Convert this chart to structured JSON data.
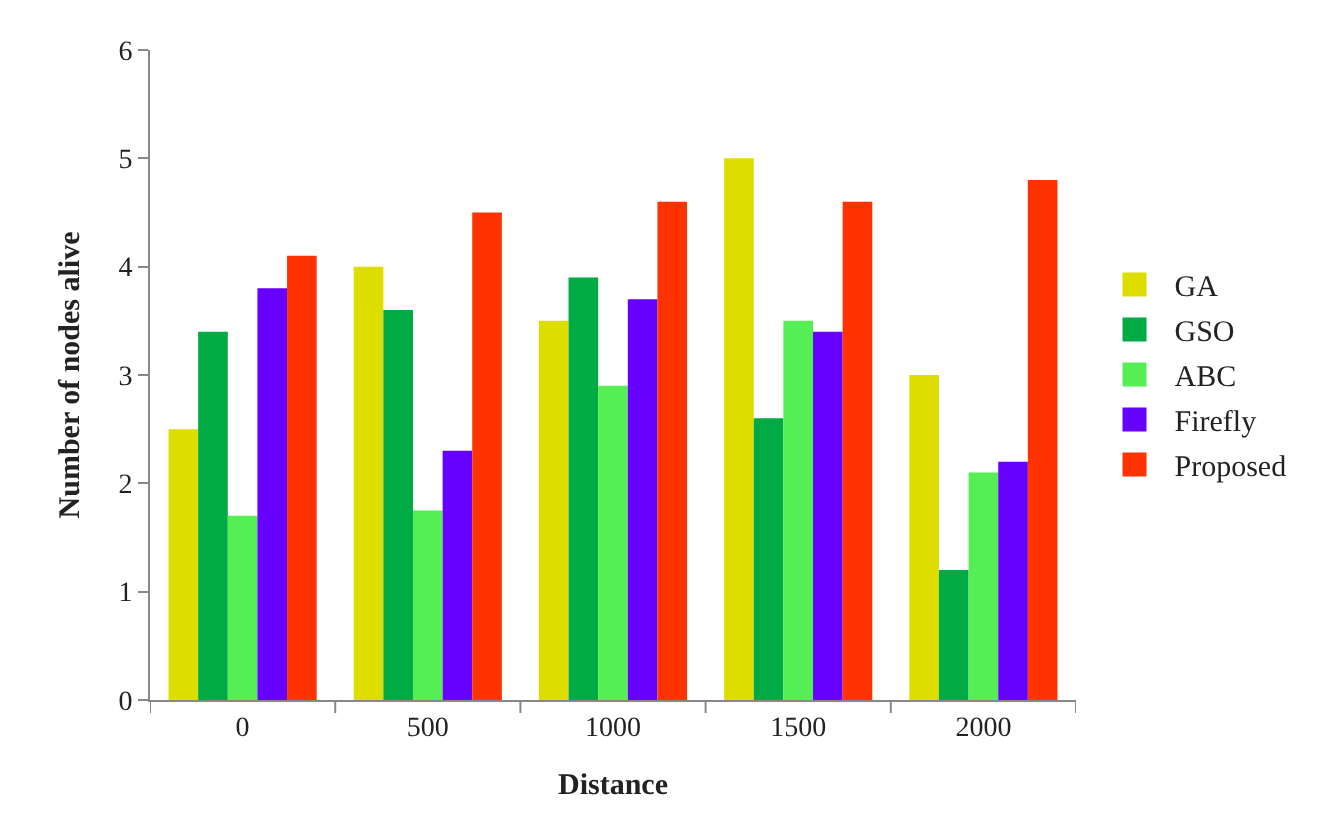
{
  "chart_data": {
    "type": "bar",
    "xlabel": "Distance",
    "ylabel": "Number of nodes alive",
    "categories": [
      "0",
      "500",
      "1000",
      "1500",
      "2000"
    ],
    "series": [
      {
        "name": "GA",
        "color": "#dddd00",
        "values": [
          2.5,
          4.0,
          3.5,
          5.0,
          3.0
        ]
      },
      {
        "name": "GSO",
        "color": "#00aa44",
        "values": [
          3.4,
          3.6,
          3.9,
          2.6,
          1.2
        ]
      },
      {
        "name": "ABC",
        "color": "#55ee55",
        "values": [
          1.7,
          1.75,
          2.9,
          3.5,
          2.1
        ]
      },
      {
        "name": "Firefly",
        "color": "#6600ff",
        "values": [
          3.8,
          2.3,
          3.7,
          3.4,
          2.2
        ]
      },
      {
        "name": "Proposed",
        "color": "#ff3300",
        "values": [
          4.1,
          4.5,
          4.6,
          4.6,
          4.8
        ]
      }
    ],
    "ylim": [
      0,
      6
    ],
    "yticks": [
      0,
      1,
      2,
      3,
      4,
      5,
      6
    ],
    "legend": "right"
  }
}
